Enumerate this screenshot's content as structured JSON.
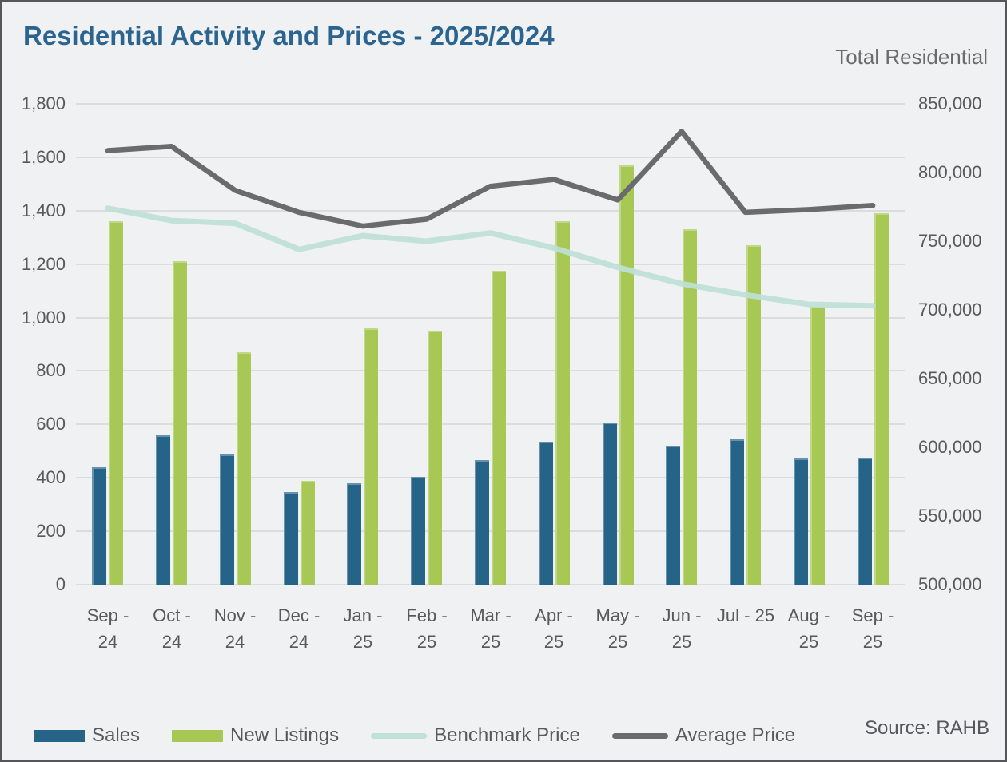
{
  "title": "Residential Activity and Prices - 2025/2024",
  "right_axis_title": "Total Residential",
  "source": "Source: RAHB",
  "colors": {
    "sales": "#266389",
    "new_listings": "#A7C855",
    "benchmark_price": "#BEE0D6",
    "average_price": "#6A6B6D",
    "background": "#F0F1F2",
    "gridline": "#DBDCDE",
    "title_text": "#2A648F",
    "axis_text": "#58595B",
    "border": "#54565A"
  },
  "legend": [
    {
      "label": "Sales",
      "swatch": "rect",
      "color_key": "sales"
    },
    {
      "label": "New Listings",
      "swatch": "rect",
      "color_key": "new_listings"
    },
    {
      "label": "Benchmark Price",
      "swatch": "line",
      "color_key": "benchmark_price"
    },
    {
      "label": "Average Price",
      "swatch": "line",
      "color_key": "average_price"
    }
  ],
  "chart_data": {
    "type": "combo-bar-line",
    "title": "Residential Activity and Prices - 2025/2024",
    "categories": [
      "Sep - 24",
      "Oct - 24",
      "Nov - 24",
      "Dec - 24",
      "Jan - 25",
      "Feb - 25",
      "Mar - 25",
      "Apr - 25",
      "May - 25",
      "Jun - 25",
      "Jul - 25",
      "Aug - 25",
      "Sep - 25"
    ],
    "category_label_lines": [
      [
        "Sep -",
        "24"
      ],
      [
        "Oct -",
        "24"
      ],
      [
        "Nov -",
        "24"
      ],
      [
        "Dec -",
        "24"
      ],
      [
        "Jan -",
        "25"
      ],
      [
        "Feb -",
        "25"
      ],
      [
        "Mar -",
        "25"
      ],
      [
        "Apr -",
        "25"
      ],
      [
        "May -",
        "25"
      ],
      [
        "Jun -",
        "25"
      ],
      [
        "Jul - 25"
      ],
      [
        "Aug -",
        "25"
      ],
      [
        "Sep -",
        "25"
      ]
    ],
    "series": [
      {
        "name": "Sales",
        "type": "bar",
        "axis": "left",
        "color_key": "sales",
        "values": [
          440,
          560,
          487,
          346,
          380,
          404,
          465,
          535,
          607,
          520,
          545,
          472,
          475
        ]
      },
      {
        "name": "New Listings",
        "type": "bar",
        "axis": "left",
        "color_key": "new_listings",
        "values": [
          1360,
          1210,
          870,
          388,
          960,
          950,
          1175,
          1360,
          1570,
          1330,
          1270,
          1040,
          1390
        ]
      },
      {
        "name": "Benchmark Price",
        "type": "line",
        "axis": "right",
        "color_key": "benchmark_price",
        "values": [
          774000,
          765000,
          763000,
          744000,
          754000,
          750000,
          756000,
          745000,
          731000,
          719000,
          711000,
          704000,
          703000
        ]
      },
      {
        "name": "Average Price",
        "type": "line",
        "axis": "right",
        "color_key": "average_price",
        "values": [
          816000,
          819000,
          787000,
          771000,
          761000,
          766000,
          790000,
          795000,
          780000,
          830000,
          771000,
          773000,
          776000
        ]
      }
    ],
    "left_axis": {
      "min": 0,
      "max": 1800,
      "step": 200,
      "tick_labels": [
        "0",
        "200",
        "400",
        "600",
        "800",
        "1,000",
        "1,200",
        "1,400",
        "1,600",
        "1,800"
      ]
    },
    "right_axis": {
      "min": 500000,
      "max": 850000,
      "step": 50000,
      "tick_labels": [
        "500,000",
        "550,000",
        "600,000",
        "650,000",
        "700,000",
        "750,000",
        "800,000",
        "850,000"
      ]
    },
    "grid": true,
    "legend_position": "bottom"
  }
}
